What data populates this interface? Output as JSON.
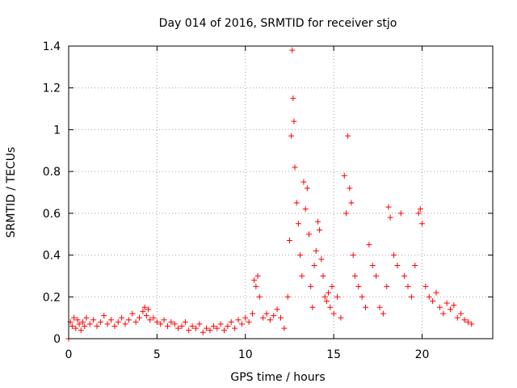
{
  "chart_data": {
    "type": "scatter",
    "title": "Day 014 of 2016, SRMTID for receiver stjo",
    "xlabel": "GPS time / hours",
    "ylabel": "SRMTID / TECUs",
    "xlim": [
      0,
      24
    ],
    "ylim": [
      0,
      1.4
    ],
    "xticks": [
      0,
      5,
      10,
      15,
      20
    ],
    "yticks": [
      0,
      0.2,
      0.4,
      0.6,
      0.8,
      1,
      1.2,
      1.4
    ],
    "xtick_labels": [
      "0",
      "5",
      "10",
      "15",
      "20"
    ],
    "ytick_labels": [
      "0",
      "0.2",
      "0.4",
      "0.6",
      "0.8",
      "1",
      "1.2",
      "1.4"
    ],
    "grid": true,
    "marker": "+",
    "color": "#ff0000",
    "series": [
      {
        "name": "SRMTID",
        "x": [
          0.0,
          0.1,
          0.2,
          0.3,
          0.4,
          0.5,
          0.6,
          0.7,
          0.8,
          0.9,
          1.0,
          1.2,
          1.4,
          1.6,
          1.8,
          2.0,
          2.2,
          2.4,
          2.6,
          2.8,
          3.0,
          3.2,
          3.4,
          3.6,
          3.8,
          4.0,
          4.2,
          4.3,
          4.4,
          4.5,
          4.6,
          4.8,
          5.0,
          5.2,
          5.4,
          5.6,
          5.8,
          6.0,
          6.2,
          6.4,
          6.6,
          6.8,
          7.0,
          7.2,
          7.4,
          7.6,
          7.8,
          8.0,
          8.2,
          8.4,
          8.6,
          8.8,
          9.0,
          9.2,
          9.4,
          9.6,
          9.8,
          10.0,
          10.2,
          10.4,
          10.5,
          10.6,
          10.7,
          10.8,
          11.0,
          11.2,
          11.4,
          11.6,
          11.8,
          12.0,
          12.2,
          12.4,
          12.5,
          12.6,
          12.65,
          12.7,
          12.75,
          12.8,
          12.9,
          13.0,
          13.1,
          13.2,
          13.3,
          13.4,
          13.5,
          13.6,
          13.7,
          13.8,
          13.9,
          14.0,
          14.1,
          14.2,
          14.3,
          14.4,
          14.5,
          14.6,
          14.7,
          14.8,
          14.9,
          15.0,
          15.2,
          15.4,
          15.6,
          15.7,
          15.8,
          15.9,
          16.0,
          16.1,
          16.2,
          16.4,
          16.6,
          16.8,
          17.0,
          17.2,
          17.4,
          17.6,
          17.8,
          18.0,
          18.1,
          18.2,
          18.4,
          18.6,
          18.8,
          19.0,
          19.2,
          19.4,
          19.6,
          19.8,
          19.9,
          20.0,
          20.2,
          20.4,
          20.6,
          20.8,
          21.0,
          21.2,
          21.4,
          21.6,
          21.8,
          22.0,
          22.2,
          22.4,
          22.6,
          22.8
        ],
        "y": [
          0.0,
          0.08,
          0.06,
          0.1,
          0.05,
          0.09,
          0.07,
          0.04,
          0.08,
          0.06,
          0.1,
          0.07,
          0.09,
          0.06,
          0.08,
          0.11,
          0.07,
          0.09,
          0.06,
          0.08,
          0.1,
          0.07,
          0.09,
          0.12,
          0.08,
          0.1,
          0.13,
          0.15,
          0.11,
          0.14,
          0.09,
          0.1,
          0.08,
          0.07,
          0.09,
          0.06,
          0.08,
          0.07,
          0.05,
          0.06,
          0.08,
          0.04,
          0.06,
          0.05,
          0.07,
          0.03,
          0.05,
          0.04,
          0.06,
          0.05,
          0.07,
          0.04,
          0.06,
          0.08,
          0.05,
          0.09,
          0.07,
          0.1,
          0.08,
          0.12,
          0.28,
          0.25,
          0.3,
          0.2,
          0.1,
          0.12,
          0.09,
          0.11,
          0.14,
          0.1,
          0.05,
          0.2,
          0.47,
          0.97,
          1.38,
          1.15,
          1.04,
          0.82,
          0.65,
          0.55,
          0.4,
          0.3,
          0.75,
          0.62,
          0.72,
          0.5,
          0.25,
          0.15,
          0.35,
          0.42,
          0.56,
          0.52,
          0.38,
          0.3,
          0.2,
          0.18,
          0.22,
          0.15,
          0.25,
          0.12,
          0.2,
          0.1,
          0.78,
          0.6,
          0.97,
          0.72,
          0.65,
          0.4,
          0.3,
          0.25,
          0.2,
          0.15,
          0.45,
          0.35,
          0.3,
          0.15,
          0.12,
          0.25,
          0.63,
          0.58,
          0.4,
          0.35,
          0.6,
          0.3,
          0.25,
          0.2,
          0.35,
          0.6,
          0.62,
          0.55,
          0.25,
          0.2,
          0.18,
          0.22,
          0.15,
          0.12,
          0.17,
          0.14,
          0.16,
          0.1,
          0.12,
          0.09,
          0.08,
          0.07
        ]
      }
    ]
  }
}
